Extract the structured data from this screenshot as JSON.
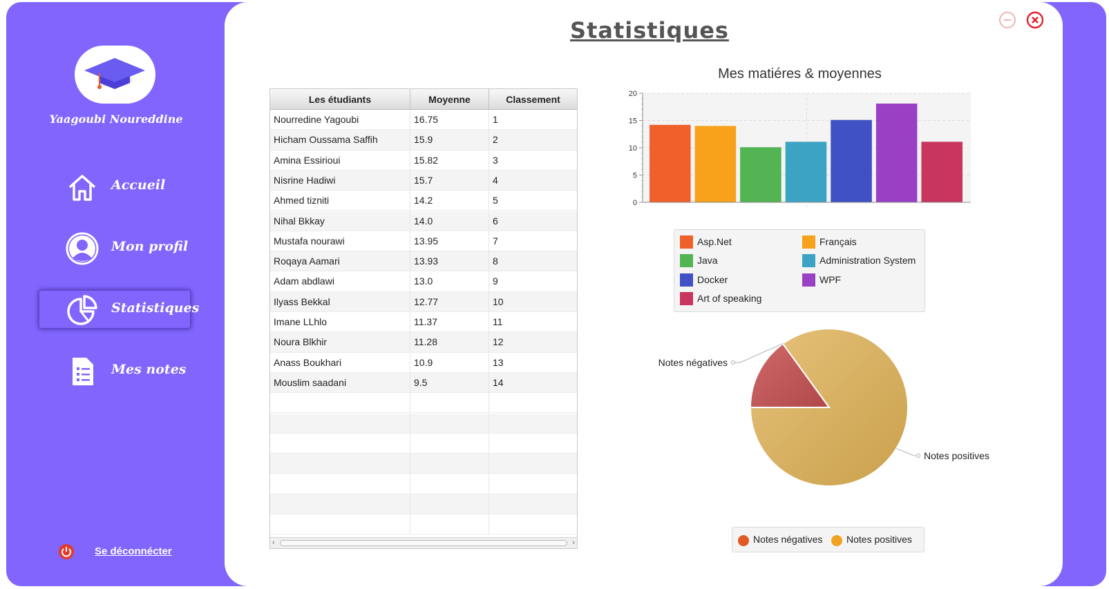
{
  "sidebar": {
    "username": "Yaagoubi Noureddine",
    "nav": [
      {
        "label": "Accueil",
        "icon": "home-icon"
      },
      {
        "label": "Mon profil",
        "icon": "user-icon"
      },
      {
        "label": "Statistiques",
        "icon": "pie-chart-icon",
        "active": true
      },
      {
        "label": "Mes notes",
        "icon": "document-icon"
      }
    ],
    "logout_label": "Se déconnécter"
  },
  "header": {
    "title": "Statistiques"
  },
  "table": {
    "columns": [
      "Les étudiants",
      "Moyenne",
      "Classement"
    ],
    "rows": [
      [
        "Nourredine Yagoubi",
        "16.75",
        "1"
      ],
      [
        "Hicham Oussama Saffih",
        "15.9",
        "2"
      ],
      [
        "Amina Essirioui",
        "15.82",
        "3"
      ],
      [
        "Nisrine Hadiwi",
        "15.7",
        "4"
      ],
      [
        "Ahmed tizniti",
        "14.2",
        "5"
      ],
      [
        "Nihal Bkkay",
        "14.0",
        "6"
      ],
      [
        "Mustafa nourawi",
        "13.95",
        "7"
      ],
      [
        "Roqaya Aamari",
        "13.93",
        "8"
      ],
      [
        "Adam abdlawi",
        "13.0",
        "9"
      ],
      [
        "Ilyass Bekkal",
        "12.77",
        "10"
      ],
      [
        "Imane LLhlo",
        "11.37",
        "11"
      ],
      [
        "Noura Blkhir",
        "11.28",
        "12"
      ],
      [
        "Anass Boukhari",
        "10.9",
        "13"
      ],
      [
        "Mouslim saadani",
        "9.5",
        "14"
      ]
    ]
  },
  "chart_data": [
    {
      "type": "bar",
      "title": "Mes matiéres & moyennes",
      "ylim": [
        0,
        20
      ],
      "yticks": [
        "0",
        "5",
        "10",
        "15",
        "20"
      ],
      "grid": true,
      "legend": "bottom",
      "series": [
        {
          "name": "Asp.Net",
          "value": 14.2,
          "color": "#f0602a"
        },
        {
          "name": "Français",
          "value": 14.0,
          "color": "#f8a11a"
        },
        {
          "name": "Java",
          "value": 10.1,
          "color": "#52b452"
        },
        {
          "name": "Administration System",
          "value": 11.1,
          "color": "#3ca3c4"
        },
        {
          "name": "Docker",
          "value": 15.1,
          "color": "#3f51c4"
        },
        {
          "name": "WPF",
          "value": 18.1,
          "color": "#9a40c4"
        },
        {
          "name": "Art of speaking",
          "value": 11.1,
          "color": "#c8355e"
        }
      ]
    },
    {
      "type": "pie",
      "legend": "bottom",
      "slices": [
        {
          "name": "Notes négatives",
          "value": 15,
          "color": "#c05055",
          "legend_color": "#e25a23"
        },
        {
          "name": "Notes positives",
          "value": 85,
          "color": "#d8ac5c",
          "legend_color": "#f0a220"
        }
      ]
    }
  ],
  "colors": {
    "sidebar": "#8165fc",
    "close": "#e0202a",
    "minimize": "#f0b0b0"
  }
}
